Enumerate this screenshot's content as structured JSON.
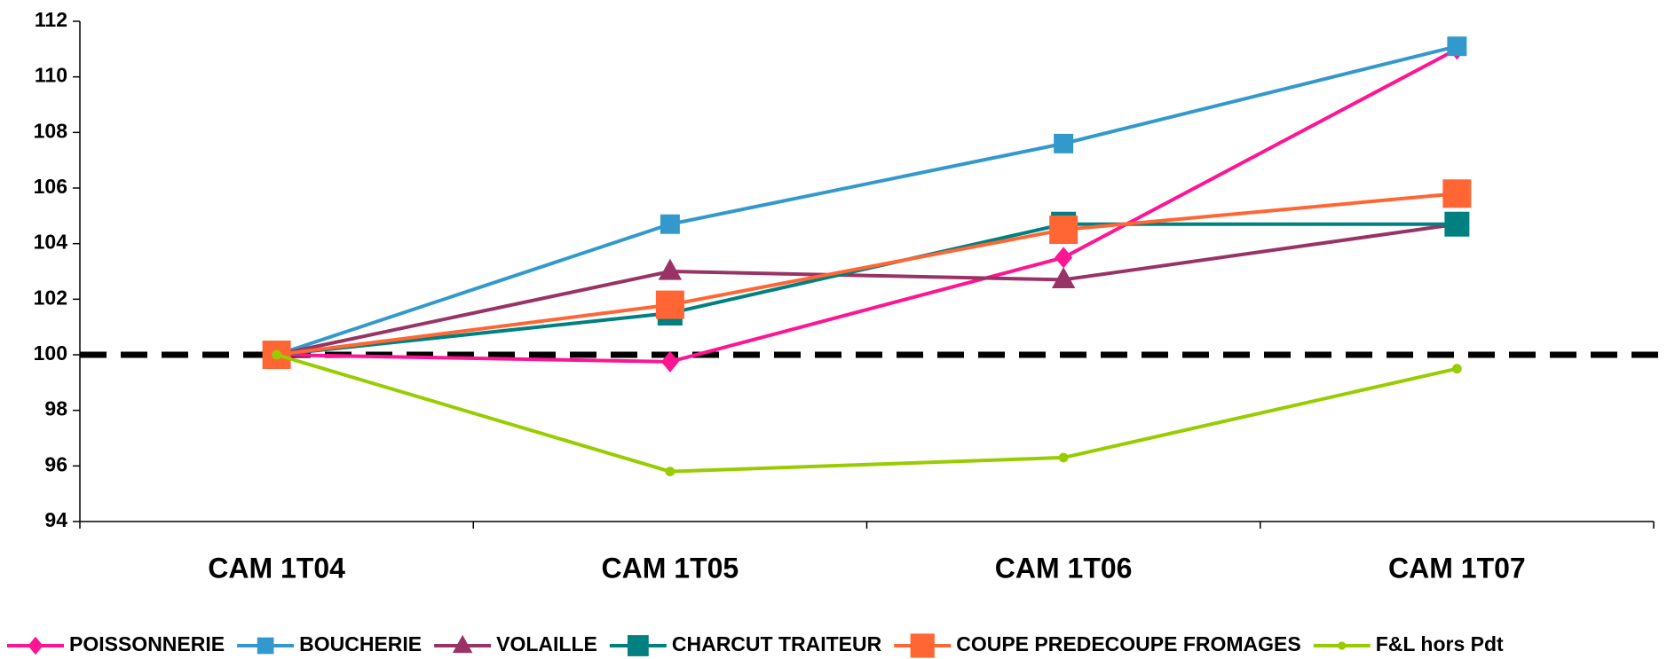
{
  "chart_data": {
    "type": "line",
    "categories": [
      "CAM 1T04",
      "CAM 1T05",
      "CAM 1T06",
      "CAM 1T07"
    ],
    "series": [
      {
        "name": "POISSONNERIE",
        "color": "#ff1493",
        "marker": "diamond",
        "values": [
          100,
          99.75,
          103.5,
          111.0
        ]
      },
      {
        "name": "BOUCHERIE",
        "color": "#3399cc",
        "marker": "square",
        "values": [
          100,
          104.7,
          107.6,
          111.1
        ]
      },
      {
        "name": "VOLAILLE",
        "color": "#993366",
        "marker": "triangle",
        "values": [
          100,
          103.0,
          102.7,
          104.7
        ]
      },
      {
        "name": "CHARCUT TRAITEUR",
        "color": "#008080",
        "marker": "square",
        "values": [
          100,
          101.5,
          104.7,
          104.7
        ]
      },
      {
        "name": "COUPE PREDECOUPE FROMAGES",
        "color": "#ff6633",
        "marker": "square",
        "values": [
          100,
          101.8,
          104.5,
          105.8
        ]
      },
      {
        "name": "F&L hors Pdt",
        "color": "#99cc00",
        "marker": "circle",
        "values": [
          100,
          95.8,
          96.3,
          99.5
        ]
      }
    ],
    "reference_line": 100,
    "ylim": [
      94,
      112
    ],
    "yticks": [
      94,
      96,
      98,
      100,
      102,
      104,
      106,
      108,
      110,
      112
    ],
    "grid": false,
    "legend": "bottom"
  }
}
